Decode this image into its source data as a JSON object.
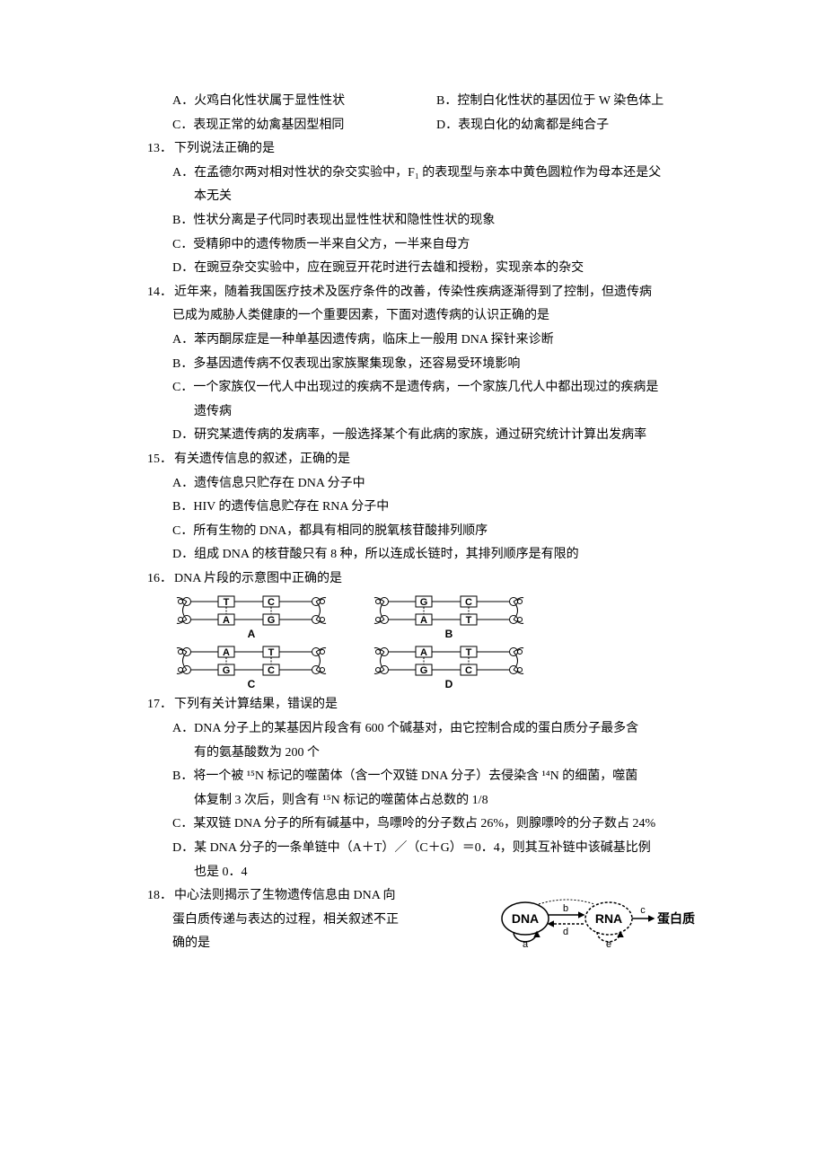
{
  "pre": {
    "optA": "A．火鸡白化性状属于显性性状",
    "optB": "B．控制白化性状的基因位于 W 染色体上",
    "optC": "C．表现正常的幼禽基因型相同",
    "optD": "D．表现白化的幼禽都是纯合子"
  },
  "q13": {
    "num": "13．",
    "stem": "下列说法正确的是",
    "A1": "A．在孟德尔两对相对性状的杂交实验中，F₁ 的表现型与亲本中黄色圆粒作为母本还是父",
    "A2": "本无关",
    "B": "B．性状分离是子代同时表现出显性性状和隐性性状的现象",
    "C": "C．受精卵中的遗传物质一半来自父方，一半来自母方",
    "D": "D．在豌豆杂交实验中，应在豌豆开花时进行去雄和授粉，实现亲本的杂交"
  },
  "q14": {
    "num": "14．",
    "stem1": "近年来，随着我国医疗技术及医疗条件的改善，传染性疾病逐渐得到了控制，但遗传病",
    "stem2": "已成为威胁人类健康的一个重要因素，下面对遗传病的认识正确的是",
    "A": "A．苯丙酮尿症是一种单基因遗传病，临床上一般用 DNA 探针来诊断",
    "B": "B．多基因遗传病不仅表现出家族聚集现象，还容易受环境影响",
    "C1": "C．一个家族仅一代人中出现过的疾病不是遗传病，一个家族几代人中都出现过的疾病是",
    "C2": "遗传病",
    "D": "D．研究某遗传病的发病率，一般选择某个有此病的家族，通过研究统计计算出发病率"
  },
  "q15": {
    "num": "15．",
    "stem": "有关遗传信息的叙述，正确的是",
    "A": "A．遗传信息只贮存在 DNA 分子中",
    "B": "B．HIV 的遗传信息贮存在 RNA 分子中",
    "C": "C．所有生物的 DNA，都具有相同的脱氧核苷酸排列顺序",
    "D": "D．组成 DNA 的核苷酸只有 8 种，所以连成长链时，其排列顺序是有限的"
  },
  "q16": {
    "num": "16．",
    "stem": "DNA 片段的示意图中正确的是",
    "diagram": {
      "panels": [
        {
          "label": "A",
          "top": [
            "T",
            "C"
          ],
          "bot": [
            "A",
            "G"
          ],
          "boxPairs": true,
          "sameSide": false
        },
        {
          "label": "B",
          "top": [
            "G",
            "C"
          ],
          "bot": [
            "A",
            "T"
          ],
          "boxPairs": true,
          "sameSide": false
        },
        {
          "label": "C",
          "top": [
            "A",
            "T"
          ],
          "bot": [
            "G",
            "C"
          ],
          "boxPairs": false,
          "sameSide": true
        },
        {
          "label": "D",
          "top": [
            "A",
            "T"
          ],
          "bot": [
            "G",
            "C"
          ],
          "boxPairs": false,
          "sameSide": true
        }
      ],
      "colors": {
        "stroke": "#000000",
        "fill": "#ffffff"
      },
      "fontsize": 11
    }
  },
  "q17": {
    "num": "17．",
    "stem": "下列有关计算结果，错误的是",
    "A1": "A．DNA 分子上的某基因片段含有 600 个碱基对，由它控制合成的蛋白质分子最多含",
    "A2": "有的氨基酸数为 200 个",
    "B1": "B．将一个被 ¹⁵N 标记的噬菌体（含一个双链 DNA 分子）去侵染含 ¹⁴N 的细菌，噬菌",
    "B2": "体复制 3 次后，则含有 ¹⁵N 标记的噬菌体占总数的 1/8",
    "C": "C．某双链 DNA 分子的所有碱基中，鸟嘌呤的分子数占 26%，则腺嘌呤的分子数占 24%",
    "D1": "D．某 DNA 分子的一条单链中（A＋T）／（C＋G）＝0．4，则其互补链中该碱基比例",
    "D2": "也是 0．4"
  },
  "q18": {
    "num": "18．",
    "line1": "中心法则揭示了生物遗传信息由 DNA 向",
    "line2": "蛋白质传递与表达的过程，相关叙述不正",
    "line3": "确的是",
    "diagram": {
      "dna": "DNA",
      "rna": "RNA",
      "protein": "蛋白质",
      "a": "a",
      "b": "b",
      "c": "c",
      "d": "d",
      "e": "e",
      "stroke": "#000000",
      "fontsize": 14,
      "bold": true
    }
  }
}
